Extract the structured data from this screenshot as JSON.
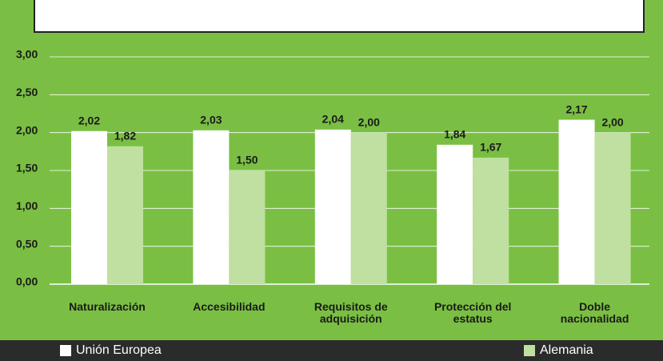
{
  "chart_data": {
    "type": "bar",
    "categories": [
      "Naturalización",
      "Accesibilidad",
      "Requisitos de adquisición",
      "Protección del estatus",
      "Doble nacionalidad"
    ],
    "series": [
      {
        "name": "Unión Europea",
        "color": "#ffffff",
        "values": [
          2.02,
          2.03,
          2.04,
          1.84,
          2.17
        ],
        "value_labels": [
          "2,02",
          "2,03",
          "2,04",
          "1,84",
          "2,17"
        ]
      },
      {
        "name": "Alemania",
        "color": "#bfe0a0",
        "values": [
          1.82,
          1.5,
          2.0,
          1.67,
          2.0
        ],
        "value_labels": [
          "1,82",
          "1,50",
          "2,00",
          "1,67",
          "2,00"
        ]
      }
    ],
    "ylim": [
      0,
      3
    ],
    "yticks": [
      {
        "value": 0,
        "label": "0,00"
      },
      {
        "value": 0.5,
        "label": "0,50"
      },
      {
        "value": 1,
        "label": "1,00"
      },
      {
        "value": 1.5,
        "label": "1,50"
      },
      {
        "value": 2,
        "label": "2,00"
      },
      {
        "value": 2.5,
        "label": "2,50"
      },
      {
        "value": 3,
        "label": "3,00"
      }
    ],
    "grid": true
  }
}
